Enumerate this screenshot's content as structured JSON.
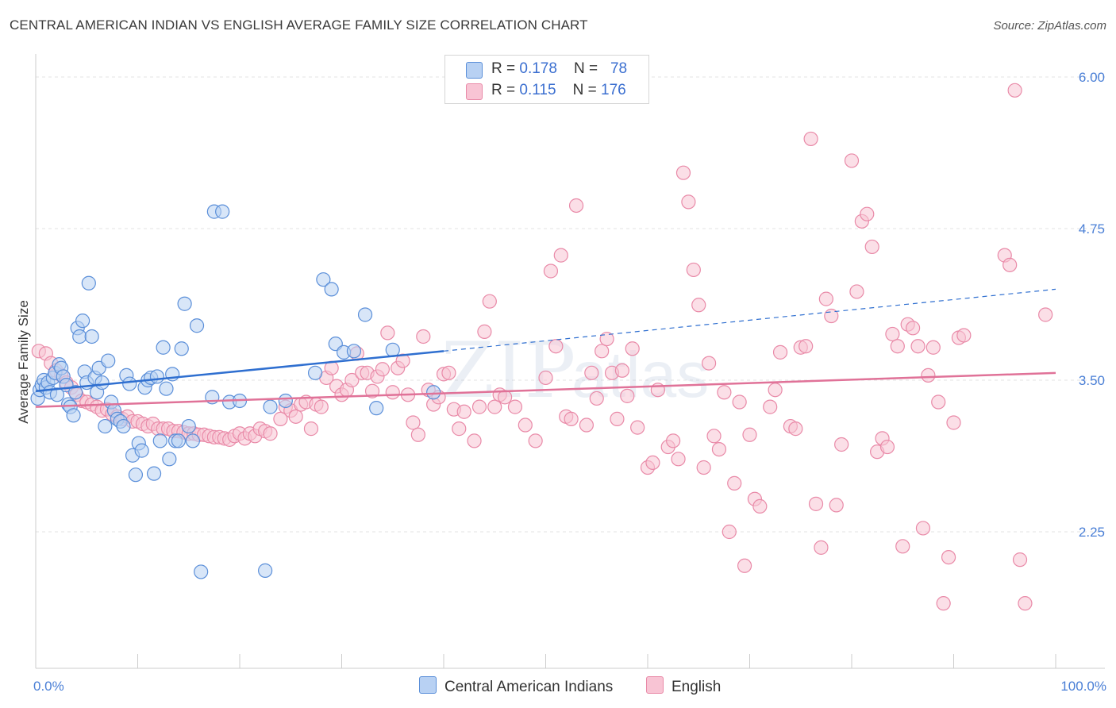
{
  "title": "CENTRAL AMERICAN INDIAN VS ENGLISH AVERAGE FAMILY SIZE CORRELATION CHART",
  "source": "Source: ZipAtlas.com",
  "watermark": {
    "zip": "ZIP",
    "atlas": "atlas"
  },
  "legend": {
    "rows": [
      {
        "r_label": "R = ",
        "r_value": "0.178",
        "n_label": "N = ",
        "n_value": "78"
      },
      {
        "r_label": "R = ",
        "r_value": "0.115",
        "n_label": "N = ",
        "n_value": "176"
      }
    ]
  },
  "bottom_legend": [
    "Central American Indians",
    "English"
  ],
  "colors": {
    "blue_fill": "#b8d1f3",
    "blue_stroke": "#5b8fd9",
    "blue_line": "#2f6fd0",
    "pink_fill": "#f8c4d4",
    "pink_stroke": "#e98aa8",
    "pink_line": "#e07298",
    "grid": "#e3e3e3",
    "tick": "#4a7fd6"
  },
  "chart_data": {
    "type": "scatter",
    "xlabel": "",
    "ylabel": "Average Family Size",
    "x_ticks": [
      "0.0%",
      "100.0%"
    ],
    "y_ticks": [
      "2.25",
      "3.50",
      "4.75",
      "6.00"
    ],
    "y_tick_values": [
      2.25,
      3.5,
      4.75,
      6.0
    ],
    "xlim": [
      0,
      100
    ],
    "ylim": [
      1.35,
      6.15
    ],
    "grid": true,
    "series": [
      {
        "name": "Central American Indians",
        "r": 0.178,
        "n": 78,
        "trend": {
          "x0": 0,
          "y0": 3.41,
          "x1": 40,
          "y1": 3.74,
          "dashed_to_x": 100,
          "dashed_to_y": 4.25
        },
        "points": [
          [
            0.2,
            3.35
          ],
          [
            0.4,
            3.42
          ],
          [
            0.6,
            3.46
          ],
          [
            0.8,
            3.5
          ],
          [
            1.0,
            3.44
          ],
          [
            1.2,
            3.48
          ],
          [
            1.4,
            3.4
          ],
          [
            1.7,
            3.52
          ],
          [
            1.9,
            3.56
          ],
          [
            2.1,
            3.38
          ],
          [
            2.3,
            3.63
          ],
          [
            2.5,
            3.6
          ],
          [
            2.7,
            3.53
          ],
          [
            3.0,
            3.46
          ],
          [
            3.2,
            3.3
          ],
          [
            3.4,
            3.28
          ],
          [
            3.7,
            3.21
          ],
          [
            3.9,
            3.4
          ],
          [
            4.1,
            3.93
          ],
          [
            4.3,
            3.86
          ],
          [
            4.6,
            3.99
          ],
          [
            4.8,
            3.57
          ],
          [
            5.0,
            3.48
          ],
          [
            5.2,
            4.3
          ],
          [
            5.5,
            3.86
          ],
          [
            5.8,
            3.52
          ],
          [
            6.0,
            3.4
          ],
          [
            6.2,
            3.6
          ],
          [
            6.5,
            3.48
          ],
          [
            6.8,
            3.12
          ],
          [
            7.1,
            3.66
          ],
          [
            7.4,
            3.32
          ],
          [
            7.7,
            3.25
          ],
          [
            8.0,
            3.18
          ],
          [
            8.3,
            3.16
          ],
          [
            8.6,
            3.12
          ],
          [
            8.9,
            3.54
          ],
          [
            9.2,
            3.47
          ],
          [
            9.5,
            2.88
          ],
          [
            9.8,
            2.72
          ],
          [
            10.1,
            2.98
          ],
          [
            10.4,
            2.92
          ],
          [
            10.7,
            3.44
          ],
          [
            11.0,
            3.5
          ],
          [
            11.3,
            3.52
          ],
          [
            11.6,
            2.73
          ],
          [
            11.9,
            3.53
          ],
          [
            12.2,
            3.0
          ],
          [
            12.5,
            3.77
          ],
          [
            12.8,
            3.43
          ],
          [
            13.1,
            2.85
          ],
          [
            13.4,
            3.55
          ],
          [
            13.7,
            3.0
          ],
          [
            14.0,
            3.0
          ],
          [
            14.3,
            3.76
          ],
          [
            14.6,
            4.13
          ],
          [
            15.0,
            3.12
          ],
          [
            15.4,
            3.0
          ],
          [
            15.8,
            3.95
          ],
          [
            16.2,
            1.92
          ],
          [
            17.3,
            3.36
          ],
          [
            17.5,
            4.89
          ],
          [
            18.3,
            4.89
          ],
          [
            19.0,
            3.32
          ],
          [
            20.0,
            3.33
          ],
          [
            22.5,
            1.93
          ],
          [
            23.0,
            3.28
          ],
          [
            24.5,
            3.33
          ],
          [
            27.4,
            3.56
          ],
          [
            28.2,
            4.33
          ],
          [
            29.0,
            4.25
          ],
          [
            29.4,
            3.8
          ],
          [
            30.2,
            3.73
          ],
          [
            31.2,
            3.74
          ],
          [
            32.3,
            4.04
          ],
          [
            33.4,
            3.27
          ],
          [
            35.0,
            3.75
          ],
          [
            39.0,
            3.4
          ]
        ]
      },
      {
        "name": "English",
        "r": 0.115,
        "n": 176,
        "trend": {
          "x0": 0,
          "y0": 3.28,
          "x1": 100,
          "y1": 3.56
        },
        "points": [
          [
            0.3,
            3.74
          ],
          [
            1.0,
            3.72
          ],
          [
            1.5,
            3.64
          ],
          [
            2.0,
            3.58
          ],
          [
            2.5,
            3.54
          ],
          [
            3.0,
            3.48
          ],
          [
            3.5,
            3.44
          ],
          [
            4.0,
            3.38
          ],
          [
            4.5,
            3.33
          ],
          [
            5.0,
            3.32
          ],
          [
            5.5,
            3.3
          ],
          [
            6.0,
            3.28
          ],
          [
            6.5,
            3.25
          ],
          [
            7.0,
            3.26
          ],
          [
            7.5,
            3.22
          ],
          [
            8.0,
            3.2
          ],
          [
            8.5,
            3.18
          ],
          [
            9.0,
            3.2
          ],
          [
            9.5,
            3.16
          ],
          [
            10.0,
            3.16
          ],
          [
            10.5,
            3.14
          ],
          [
            11.0,
            3.12
          ],
          [
            11.5,
            3.14
          ],
          [
            12.0,
            3.1
          ],
          [
            12.5,
            3.1
          ],
          [
            13.0,
            3.1
          ],
          [
            13.5,
            3.08
          ],
          [
            14.0,
            3.08
          ],
          [
            14.5,
            3.07
          ],
          [
            15.0,
            3.06
          ],
          [
            15.5,
            3.06
          ],
          [
            16.0,
            3.05
          ],
          [
            16.5,
            3.05
          ],
          [
            17.0,
            3.04
          ],
          [
            17.5,
            3.03
          ],
          [
            18.0,
            3.03
          ],
          [
            18.5,
            3.02
          ],
          [
            19.0,
            3.01
          ],
          [
            19.5,
            3.04
          ],
          [
            20.0,
            3.06
          ],
          [
            20.5,
            3.02
          ],
          [
            21.0,
            3.06
          ],
          [
            21.5,
            3.04
          ],
          [
            22.0,
            3.1
          ],
          [
            22.5,
            3.08
          ],
          [
            23.0,
            3.06
          ],
          [
            24.0,
            3.18
          ],
          [
            24.5,
            3.28
          ],
          [
            25.0,
            3.25
          ],
          [
            25.5,
            3.2
          ],
          [
            26.0,
            3.3
          ],
          [
            26.5,
            3.32
          ],
          [
            27.0,
            3.1
          ],
          [
            27.5,
            3.3
          ],
          [
            28.0,
            3.28
          ],
          [
            28.5,
            3.52
          ],
          [
            29.0,
            3.6
          ],
          [
            29.5,
            3.45
          ],
          [
            30.0,
            3.38
          ],
          [
            30.5,
            3.42
          ],
          [
            31.0,
            3.5
          ],
          [
            31.5,
            3.72
          ],
          [
            32.0,
            3.56
          ],
          [
            32.5,
            3.56
          ],
          [
            33.0,
            3.41
          ],
          [
            33.5,
            3.53
          ],
          [
            34.0,
            3.59
          ],
          [
            34.5,
            3.89
          ],
          [
            35.0,
            3.4
          ],
          [
            35.5,
            3.6
          ],
          [
            36.0,
            3.66
          ],
          [
            36.5,
            3.38
          ],
          [
            37.0,
            3.15
          ],
          [
            37.5,
            3.05
          ],
          [
            38.0,
            3.86
          ],
          [
            38.5,
            3.42
          ],
          [
            39.0,
            3.3
          ],
          [
            39.5,
            3.36
          ],
          [
            40.0,
            3.55
          ],
          [
            40.5,
            3.56
          ],
          [
            41.0,
            3.26
          ],
          [
            41.5,
            3.1
          ],
          [
            42.0,
            3.24
          ],
          [
            43.0,
            3.0
          ],
          [
            43.5,
            3.28
          ],
          [
            44.0,
            3.9
          ],
          [
            44.5,
            4.15
          ],
          [
            45.0,
            3.28
          ],
          [
            45.5,
            3.38
          ],
          [
            46.0,
            3.36
          ],
          [
            47.0,
            3.28
          ],
          [
            48.0,
            3.13
          ],
          [
            49.0,
            3.0
          ],
          [
            50.0,
            3.52
          ],
          [
            50.5,
            4.4
          ],
          [
            51.0,
            3.78
          ],
          [
            51.5,
            4.53
          ],
          [
            52.0,
            3.2
          ],
          [
            52.5,
            3.18
          ],
          [
            53.0,
            4.94
          ],
          [
            54.0,
            3.13
          ],
          [
            54.5,
            3.56
          ],
          [
            55.0,
            3.35
          ],
          [
            55.5,
            3.74
          ],
          [
            56.0,
            3.84
          ],
          [
            56.5,
            3.56
          ],
          [
            57.0,
            3.18
          ],
          [
            57.5,
            3.58
          ],
          [
            58.0,
            3.37
          ],
          [
            58.5,
            3.76
          ],
          [
            59.0,
            3.11
          ],
          [
            60.0,
            2.78
          ],
          [
            60.5,
            2.82
          ],
          [
            61.0,
            3.42
          ],
          [
            62.0,
            2.95
          ],
          [
            62.5,
            3.0
          ],
          [
            63.0,
            2.85
          ],
          [
            63.5,
            5.21
          ],
          [
            64.0,
            4.97
          ],
          [
            64.5,
            4.41
          ],
          [
            65.0,
            4.12
          ],
          [
            65.5,
            2.78
          ],
          [
            66.0,
            3.64
          ],
          [
            66.5,
            3.04
          ],
          [
            67.0,
            2.93
          ],
          [
            67.5,
            3.4
          ],
          [
            68.0,
            2.25
          ],
          [
            68.5,
            2.65
          ],
          [
            69.0,
            3.32
          ],
          [
            69.5,
            1.97
          ],
          [
            70.0,
            3.05
          ],
          [
            70.5,
            2.52
          ],
          [
            71.0,
            2.46
          ],
          [
            72.0,
            3.28
          ],
          [
            72.5,
            3.42
          ],
          [
            73.0,
            3.73
          ],
          [
            74.0,
            3.12
          ],
          [
            74.5,
            3.1
          ],
          [
            75.0,
            3.77
          ],
          [
            75.5,
            3.78
          ],
          [
            76.0,
            5.49
          ],
          [
            76.5,
            2.48
          ],
          [
            77.0,
            2.12
          ],
          [
            77.5,
            4.17
          ],
          [
            78.0,
            4.03
          ],
          [
            78.5,
            2.47
          ],
          [
            79.0,
            2.97
          ],
          [
            80.0,
            5.31
          ],
          [
            80.5,
            4.23
          ],
          [
            81.0,
            4.81
          ],
          [
            81.5,
            4.87
          ],
          [
            82.0,
            4.6
          ],
          [
            82.5,
            2.91
          ],
          [
            83.0,
            3.02
          ],
          [
            83.5,
            2.95
          ],
          [
            84.0,
            3.88
          ],
          [
            84.5,
            3.78
          ],
          [
            85.0,
            2.13
          ],
          [
            85.5,
            3.96
          ],
          [
            86.0,
            3.93
          ],
          [
            86.5,
            3.78
          ],
          [
            87.0,
            2.28
          ],
          [
            87.5,
            3.54
          ],
          [
            88.0,
            3.77
          ],
          [
            88.5,
            3.32
          ],
          [
            89.0,
            1.66
          ],
          [
            89.5,
            2.04
          ],
          [
            90.0,
            3.15
          ],
          [
            90.5,
            3.85
          ],
          [
            91.0,
            3.87
          ],
          [
            95.0,
            4.53
          ],
          [
            95.5,
            4.45
          ],
          [
            96.0,
            5.89
          ],
          [
            96.5,
            2.02
          ],
          [
            97.0,
            1.66
          ],
          [
            99.0,
            4.04
          ]
        ]
      }
    ]
  }
}
